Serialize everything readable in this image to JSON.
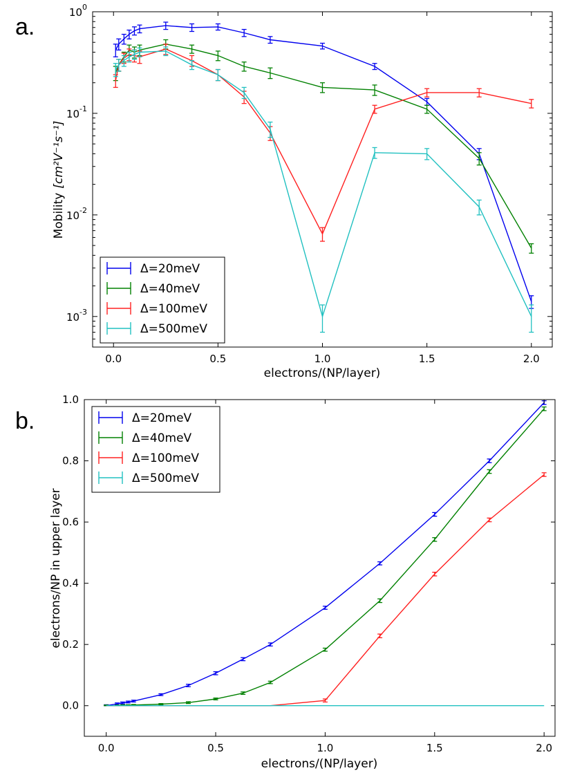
{
  "chart_data": [
    {
      "panel_label": "a.",
      "type": "line",
      "yscale": "log",
      "xlabel": "electrons/(NP/layer)",
      "ylabel_prefix": "Mobility",
      "ylabel_units": "[cm²V⁻¹s⁻¹]",
      "xlim": [
        -0.1,
        2.1
      ],
      "ylim": [
        0.0005,
        1.0
      ],
      "xticks": [
        "0.0",
        "0.5",
        "1.0",
        "1.5",
        "2.0"
      ],
      "xtick_values": [
        0,
        0.5,
        1.0,
        1.5,
        2.0
      ],
      "yticks": [
        {
          "base": "10",
          "exp": "0",
          "value": 1
        },
        {
          "base": "10",
          "exp": "-1",
          "value": 0.1
        },
        {
          "base": "10",
          "exp": "-2",
          "value": 0.01
        },
        {
          "base": "10",
          "exp": "-3",
          "value": 0.001
        }
      ],
      "legend_position": "lower-left",
      "x": [
        0.01,
        0.025,
        0.05,
        0.075,
        0.1,
        0.125,
        0.25,
        0.375,
        0.5,
        0.625,
        0.75,
        1.0,
        1.25,
        1.5,
        1.75,
        2.0
      ],
      "series": [
        {
          "name": "Δ=20meV",
          "color": "#0000ee",
          "values": [
            0.42,
            0.48,
            0.54,
            0.6,
            0.65,
            0.68,
            0.73,
            0.7,
            0.71,
            0.62,
            0.53,
            0.46,
            0.29,
            0.13,
            0.04,
            0.0014
          ],
          "errors": [
            0.06,
            0.06,
            0.06,
            0.06,
            0.06,
            0.06,
            0.06,
            0.06,
            0.05,
            0.05,
            0.04,
            0.03,
            0.02,
            0.01,
            0.005,
            0.0002
          ]
        },
        {
          "name": "Δ=40meV",
          "color": "#008000",
          "values": [
            0.25,
            0.3,
            0.36,
            0.42,
            0.4,
            0.42,
            0.48,
            0.43,
            0.37,
            0.29,
            0.25,
            0.18,
            0.17,
            0.11,
            0.036,
            0.0047
          ],
          "errors": [
            0.04,
            0.04,
            0.04,
            0.05,
            0.05,
            0.05,
            0.05,
            0.04,
            0.04,
            0.03,
            0.03,
            0.02,
            0.02,
            0.01,
            0.005,
            0.0005
          ]
        },
        {
          "name": "Δ=100meV",
          "color": "#ff2020",
          "values": [
            0.21,
            0.3,
            0.35,
            0.38,
            0.37,
            0.36,
            0.43,
            0.33,
            0.24,
            0.145,
            0.064,
            0.0065,
            0.11,
            0.16,
            0.16,
            0.125
          ],
          "errors": [
            0.03,
            0.04,
            0.04,
            0.05,
            0.05,
            0.05,
            0.05,
            0.04,
            0.03,
            0.02,
            0.01,
            0.001,
            0.01,
            0.015,
            0.015,
            0.012
          ]
        },
        {
          "name": "Δ=500meV",
          "color": "#20c0c0",
          "values": [
            0.27,
            0.3,
            0.33,
            0.36,
            0.38,
            0.4,
            0.41,
            0.3,
            0.24,
            0.16,
            0.07,
            0.001,
            0.041,
            0.04,
            0.012,
            0.001
          ],
          "errors": [
            0.04,
            0.04,
            0.04,
            0.04,
            0.04,
            0.04,
            0.04,
            0.03,
            0.03,
            0.02,
            0.012,
            0.0003,
            0.005,
            0.005,
            0.002,
            0.0003
          ]
        }
      ]
    },
    {
      "panel_label": "b.",
      "type": "line",
      "yscale": "linear",
      "xlabel": "electrons/(NP/layer)",
      "ylabel": "electrons/NP in upper layer",
      "xlim": [
        -0.1,
        2.05
      ],
      "ylim": [
        -0.1,
        1.0
      ],
      "xticks": [
        "0.0",
        "0.5",
        "1.0",
        "1.5",
        "2.0"
      ],
      "xtick_values": [
        0,
        0.5,
        1.0,
        1.5,
        2.0
      ],
      "yticks": [
        "0.0",
        "0.2",
        "0.4",
        "0.6",
        "0.8",
        "1.0"
      ],
      "ytick_values": [
        0,
        0.2,
        0.4,
        0.6,
        0.8,
        1.0
      ],
      "legend_position": "top-left",
      "x": [
        0,
        0.05,
        0.075,
        0.1,
        0.125,
        0.25,
        0.375,
        0.5,
        0.625,
        0.75,
        1.0,
        1.25,
        1.5,
        1.75,
        2.0
      ],
      "series": [
        {
          "name": "Δ=20meV",
          "color": "#0000ee",
          "values": [
            0,
            0.006,
            0.009,
            0.012,
            0.015,
            0.036,
            0.066,
            0.106,
            0.152,
            0.2,
            0.32,
            0.465,
            0.625,
            0.8,
            0.99
          ],
          "errors": [
            0.003,
            0.003,
            0.003,
            0.003,
            0.003,
            0.003,
            0.004,
            0.005,
            0.005,
            0.005,
            0.005,
            0.005,
            0.006,
            0.006,
            0.006
          ]
        },
        {
          "name": "Δ=40meV",
          "color": "#008000",
          "values": [
            0,
            0.0,
            0.001,
            0.001,
            0.002,
            0.005,
            0.01,
            0.022,
            0.041,
            0.076,
            0.183,
            0.343,
            0.543,
            0.765,
            0.97
          ],
          "errors": [
            0.002,
            0.002,
            0.002,
            0.002,
            0.002,
            0.002,
            0.003,
            0.003,
            0.004,
            0.004,
            0.005,
            0.006,
            0.006,
            0.006,
            0.006
          ]
        },
        {
          "name": "Δ=100meV",
          "color": "#ff2020",
          "values": [
            0,
            0,
            0,
            0,
            0,
            0,
            0,
            0,
            0,
            0,
            0.017,
            0.228,
            0.43,
            0.607,
            0.755
          ],
          "errors": [
            0,
            0,
            0,
            0,
            0,
            0,
            0,
            0,
            0,
            0,
            0.005,
            0.006,
            0.006,
            0.006,
            0.006
          ]
        },
        {
          "name": "Δ=500meV",
          "color": "#20c0c0",
          "values": [
            0,
            0,
            0,
            0,
            0,
            0,
            0,
            0,
            0,
            0,
            0,
            0,
            0,
            0,
            0
          ],
          "errors": [
            0,
            0,
            0,
            0,
            0,
            0,
            0,
            0,
            0,
            0,
            0,
            0,
            0,
            0,
            0
          ]
        }
      ]
    }
  ]
}
